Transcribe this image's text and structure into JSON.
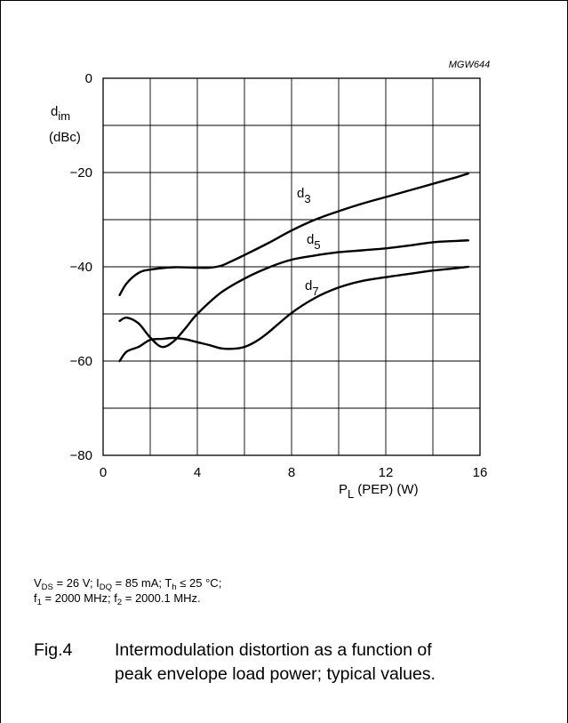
{
  "chart_data": {
    "type": "line",
    "code": "MGW644",
    "ylabel_main": "d",
    "ylabel_sub": "im",
    "ylabel_unit": "(dBc)",
    "xlabel_main": "P",
    "xlabel_sub": "L",
    "xlabel_rest": "(PEP) (W)",
    "xlim": [
      0,
      16
    ],
    "ylim": [
      -80,
      0
    ],
    "x_ticks": [
      0,
      4,
      8,
      12,
      16
    ],
    "y_ticks": [
      0,
      -20,
      -40,
      -60,
      -80
    ],
    "x_tick_labels": [
      "0",
      "4",
      "8",
      "12",
      "16"
    ],
    "y_tick_labels": [
      "0",
      "−20",
      "−40",
      "−60",
      "−80"
    ],
    "grid": true,
    "grid_x_step": 2,
    "grid_y_step": 10,
    "series": [
      {
        "name": "d3",
        "label_main": "d",
        "label_sub": "3",
        "points": [
          [
            0.7,
            -46
          ],
          [
            1,
            -43.5
          ],
          [
            1.5,
            -41.3
          ],
          [
            2,
            -40.6
          ],
          [
            3,
            -40.1
          ],
          [
            4,
            -40.2
          ],
          [
            4.5,
            -40.2
          ],
          [
            5,
            -39.8
          ],
          [
            5.5,
            -38.7
          ],
          [
            6,
            -37.5
          ],
          [
            7,
            -35
          ],
          [
            8,
            -32.3
          ],
          [
            9,
            -30
          ],
          [
            10,
            -28.2
          ],
          [
            11,
            -26.6
          ],
          [
            12,
            -25.2
          ],
          [
            13,
            -23.8
          ],
          [
            14,
            -22.4
          ],
          [
            15,
            -21
          ],
          [
            15.5,
            -20.2
          ]
        ]
      },
      {
        "name": "d5",
        "label_main": "d",
        "label_sub": "5",
        "points": [
          [
            0.7,
            -51.5
          ],
          [
            1,
            -50.8
          ],
          [
            1.5,
            -52
          ],
          [
            2,
            -55
          ],
          [
            2.5,
            -57
          ],
          [
            3,
            -55.8
          ],
          [
            3.5,
            -53
          ],
          [
            4,
            -50
          ],
          [
            5,
            -45.5
          ],
          [
            6,
            -42.5
          ],
          [
            7,
            -40.2
          ],
          [
            8,
            -38.5
          ],
          [
            9,
            -37.6
          ],
          [
            10,
            -36.9
          ],
          [
            11,
            -36.5
          ],
          [
            12,
            -36.1
          ],
          [
            13,
            -35.5
          ],
          [
            14,
            -34.8
          ],
          [
            15,
            -34.5
          ],
          [
            15.5,
            -34.4
          ]
        ]
      },
      {
        "name": "d7",
        "label_main": "d",
        "label_sub": "7",
        "points": [
          [
            0.7,
            -60
          ],
          [
            1,
            -58
          ],
          [
            1.5,
            -57
          ],
          [
            2,
            -55.5
          ],
          [
            2.5,
            -55.3
          ],
          [
            3,
            -55.1
          ],
          [
            3.5,
            -55.4
          ],
          [
            4,
            -56
          ],
          [
            4.5,
            -56.6
          ],
          [
            5,
            -57.3
          ],
          [
            5.5,
            -57.4
          ],
          [
            6,
            -57
          ],
          [
            6.5,
            -55.8
          ],
          [
            7,
            -54
          ],
          [
            8,
            -49.8
          ],
          [
            9,
            -46.6
          ],
          [
            10,
            -44.4
          ],
          [
            11,
            -43
          ],
          [
            12,
            -42.2
          ],
          [
            13,
            -41.5
          ],
          [
            14,
            -40.8
          ],
          [
            15,
            -40.3
          ],
          [
            15.5,
            -40
          ]
        ]
      }
    ]
  },
  "conditions": {
    "line1": {
      "v": "V",
      "v_sub": "DS",
      "v_val": " = 26 V; I",
      "i_sub": "DQ",
      "i_val": " = 85 mA; T",
      "t_sub": "h",
      "t_val": " ≤ 25 °C;"
    },
    "line2": {
      "f1": "f",
      "f1_sub": "1",
      "f1_val": " = 2000 MHz; f",
      "f2_sub": "2",
      "f2_val": " = 2000.1 MHz."
    }
  },
  "caption": {
    "fig": "Fig.4",
    "line1": "Intermodulation distortion as a function of",
    "line2": "peak envelope load power; typical values."
  }
}
